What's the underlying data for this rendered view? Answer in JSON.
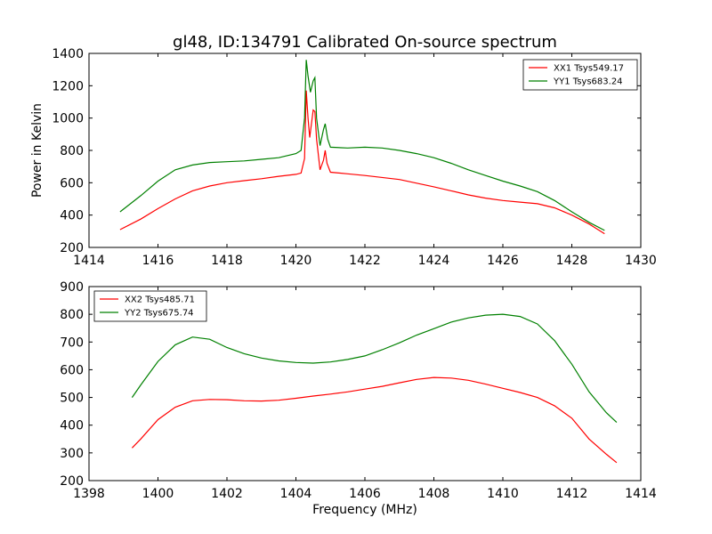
{
  "figure": {
    "title": "gl48, ID:134791 Calibrated On-source spectrum",
    "xlabel": "Frequency (MHz)",
    "ylabel": "Power in Kelvin"
  },
  "colors": {
    "red": "#ff0000",
    "green": "#008000",
    "axis": "#000000",
    "background": "#ffffff"
  },
  "chart_data": [
    {
      "type": "line",
      "title": "gl48, ID:134791 Calibrated On-source spectrum",
      "ylabel": "Power in Kelvin",
      "xlabel": "",
      "xlim": [
        1414,
        1430
      ],
      "ylim": [
        200,
        1400
      ],
      "xticks": [
        1414,
        1416,
        1418,
        1420,
        1422,
        1424,
        1426,
        1428,
        1430
      ],
      "yticks": [
        200,
        400,
        600,
        800,
        1000,
        1200,
        1400
      ],
      "grid": false,
      "legend": "top-right",
      "series": [
        {
          "name": "XX1 Tsys549.17",
          "color": "#ff0000",
          "points": [
            [
              1414.9,
              310
            ],
            [
              1415.5,
              375
            ],
            [
              1416,
              440
            ],
            [
              1416.5,
              500
            ],
            [
              1417,
              550
            ],
            [
              1417.5,
              580
            ],
            [
              1418,
              600
            ],
            [
              1418.5,
              613
            ],
            [
              1419,
              625
            ],
            [
              1419.5,
              640
            ],
            [
              1420,
              652
            ],
            [
              1420.15,
              660
            ],
            [
              1420.25,
              750
            ],
            [
              1420.3,
              1170
            ],
            [
              1420.35,
              1000
            ],
            [
              1420.4,
              880
            ],
            [
              1420.5,
              1050
            ],
            [
              1420.55,
              1040
            ],
            [
              1420.6,
              870
            ],
            [
              1420.7,
              680
            ],
            [
              1420.8,
              740
            ],
            [
              1420.85,
              800
            ],
            [
              1420.9,
              720
            ],
            [
              1421,
              665
            ],
            [
              1421.5,
              655
            ],
            [
              1422,
              645
            ],
            [
              1423,
              620
            ],
            [
              1424,
              575
            ],
            [
              1424.5,
              550
            ],
            [
              1425,
              525
            ],
            [
              1425.5,
              505
            ],
            [
              1426,
              490
            ],
            [
              1426.5,
              480
            ],
            [
              1427,
              470
            ],
            [
              1427.5,
              445
            ],
            [
              1428,
              400
            ],
            [
              1428.5,
              345
            ],
            [
              1428.95,
              285
            ]
          ]
        },
        {
          "name": "YY1 Tsys683.24",
          "color": "#008000",
          "points": [
            [
              1414.9,
              420
            ],
            [
              1415.5,
              520
            ],
            [
              1416,
              610
            ],
            [
              1416.5,
              680
            ],
            [
              1417,
              710
            ],
            [
              1417.5,
              725
            ],
            [
              1418,
              730
            ],
            [
              1418.5,
              735
            ],
            [
              1419,
              745
            ],
            [
              1419.5,
              755
            ],
            [
              1420,
              780
            ],
            [
              1420.15,
              800
            ],
            [
              1420.25,
              1000
            ],
            [
              1420.3,
              1360
            ],
            [
              1420.35,
              1260
            ],
            [
              1420.42,
              1160
            ],
            [
              1420.5,
              1230
            ],
            [
              1420.55,
              1250
            ],
            [
              1420.6,
              1000
            ],
            [
              1420.7,
              830
            ],
            [
              1420.8,
              930
            ],
            [
              1420.85,
              965
            ],
            [
              1420.92,
              870
            ],
            [
              1421,
              820
            ],
            [
              1421.5,
              815
            ],
            [
              1422,
              820
            ],
            [
              1422.5,
              815
            ],
            [
              1423,
              800
            ],
            [
              1423.5,
              780
            ],
            [
              1424,
              755
            ],
            [
              1424.5,
              720
            ],
            [
              1425,
              680
            ],
            [
              1425.5,
              645
            ],
            [
              1426,
              610
            ],
            [
              1426.5,
              580
            ],
            [
              1427,
              545
            ],
            [
              1427.5,
              490
            ],
            [
              1428,
              420
            ],
            [
              1428.5,
              355
            ],
            [
              1428.95,
              305
            ]
          ]
        }
      ]
    },
    {
      "type": "line",
      "title": "",
      "ylabel": "",
      "xlabel": "Frequency (MHz)",
      "xlim": [
        1398,
        1414
      ],
      "ylim": [
        200,
        900
      ],
      "xticks": [
        1398,
        1400,
        1402,
        1404,
        1406,
        1408,
        1410,
        1412,
        1414
      ],
      "yticks": [
        200,
        300,
        400,
        500,
        600,
        700,
        800,
        900
      ],
      "grid": false,
      "legend": "top-left",
      "series": [
        {
          "name": "XX2 Tsys485.71",
          "color": "#ff0000",
          "points": [
            [
              1399.25,
              318
            ],
            [
              1399.5,
              350
            ],
            [
              1400,
              420
            ],
            [
              1400.5,
              465
            ],
            [
              1401,
              488
            ],
            [
              1401.5,
              493
            ],
            [
              1402,
              492
            ],
            [
              1402.5,
              488
            ],
            [
              1403,
              487
            ],
            [
              1403.5,
              490
            ],
            [
              1404,
              497
            ],
            [
              1404.5,
              505
            ],
            [
              1405,
              512
            ],
            [
              1405.5,
              520
            ],
            [
              1406,
              530
            ],
            [
              1406.5,
              540
            ],
            [
              1407,
              553
            ],
            [
              1407.5,
              565
            ],
            [
              1408,
              572
            ],
            [
              1408.5,
              570
            ],
            [
              1409,
              562
            ],
            [
              1409.5,
              548
            ],
            [
              1410,
              533
            ],
            [
              1410.5,
              518
            ],
            [
              1411,
              500
            ],
            [
              1411.5,
              470
            ],
            [
              1412,
              425
            ],
            [
              1412.5,
              350
            ],
            [
              1413,
              295
            ],
            [
              1413.3,
              265
            ]
          ]
        },
        {
          "name": "YY2 Tsys675.74",
          "color": "#008000",
          "points": [
            [
              1399.25,
              500
            ],
            [
              1399.5,
              545
            ],
            [
              1400,
              630
            ],
            [
              1400.5,
              690
            ],
            [
              1401,
              718
            ],
            [
              1401.5,
              710
            ],
            [
              1402,
              680
            ],
            [
              1402.5,
              658
            ],
            [
              1403,
              642
            ],
            [
              1403.5,
              632
            ],
            [
              1404,
              626
            ],
            [
              1404.5,
              624
            ],
            [
              1405,
              628
            ],
            [
              1405.5,
              637
            ],
            [
              1406,
              650
            ],
            [
              1406.5,
              672
            ],
            [
              1407,
              697
            ],
            [
              1407.5,
              725
            ],
            [
              1408,
              748
            ],
            [
              1408.5,
              772
            ],
            [
              1409,
              787
            ],
            [
              1409.5,
              797
            ],
            [
              1410,
              800
            ],
            [
              1410.5,
              792
            ],
            [
              1411,
              765
            ],
            [
              1411.5,
              705
            ],
            [
              1412,
              620
            ],
            [
              1412.5,
              520
            ],
            [
              1413,
              445
            ],
            [
              1413.3,
              410
            ]
          ]
        }
      ]
    }
  ]
}
